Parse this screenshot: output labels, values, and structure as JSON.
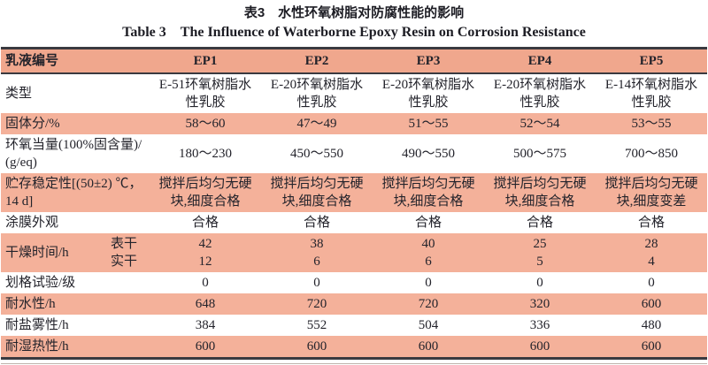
{
  "titles": {
    "zh": "表3　水性环氧树脂对防腐性能的影响",
    "en": "Table 3　The Influence of Waterborne Epoxy Resin on Corrosion Resistance"
  },
  "colors": {
    "header_bg": "#f0a78d",
    "stripe_bg": "#f4b19a",
    "rule_dark": "#3a3a40",
    "text": "#23232b"
  },
  "table": {
    "columns": [
      "乳液编号",
      "EP1",
      "EP2",
      "EP3",
      "EP4",
      "EP5"
    ],
    "rows": [
      {
        "label": "类型",
        "shade": false,
        "cells": [
          "E-51环氧树脂水性乳胶",
          "E-20环氧树脂水性乳胶",
          "E-20环氧树脂水性乳胶",
          "E-20环氧树脂水性乳胶",
          "E-14环氧树脂水性乳胶"
        ]
      },
      {
        "label": "固体分/%",
        "shade": true,
        "cells": [
          "58～60",
          "47～49",
          "51～55",
          "52～54",
          "53～55"
        ]
      },
      {
        "label": "环氧当量(100%固含量)/(g/eq)",
        "shade": false,
        "cells": [
          "180～230",
          "450～550",
          "490～550",
          "500～575",
          "700～850"
        ]
      },
      {
        "label": "贮存稳定性[(50±2) ℃，14 d]",
        "shade": true,
        "cells": [
          "搅拌后均匀无硬块,细度合格",
          "搅拌后均匀无硬块,细度合格",
          "搅拌后均匀无硬块,细度合格",
          "搅拌后均匀无硬块,细度合格",
          "搅拌后均匀无硬块,细度变差"
        ]
      },
      {
        "label": "涂膜外观",
        "shade": false,
        "cells": [
          "合格",
          "合格",
          "合格",
          "合格",
          "合格"
        ]
      },
      {
        "label": "干燥时间/h",
        "shade": true,
        "sublabels": [
          "表干",
          "实干"
        ],
        "cells": [
          [
            "42",
            "12"
          ],
          [
            "38",
            "6"
          ],
          [
            "40",
            "6"
          ],
          [
            "25",
            "5"
          ],
          [
            "28",
            "4"
          ]
        ]
      },
      {
        "label": "划格试验/级",
        "shade": false,
        "cells": [
          "0",
          "0",
          "0",
          "0",
          "0"
        ]
      },
      {
        "label": "耐水性/h",
        "shade": true,
        "cells": [
          "648",
          "720",
          "720",
          "320",
          "600"
        ]
      },
      {
        "label": "耐盐雾性/h",
        "shade": false,
        "cells": [
          "384",
          "552",
          "504",
          "336",
          "480"
        ]
      },
      {
        "label": "耐湿热性/h",
        "shade": true,
        "cells": [
          "600",
          "600",
          "600",
          "600",
          "600"
        ]
      }
    ]
  }
}
